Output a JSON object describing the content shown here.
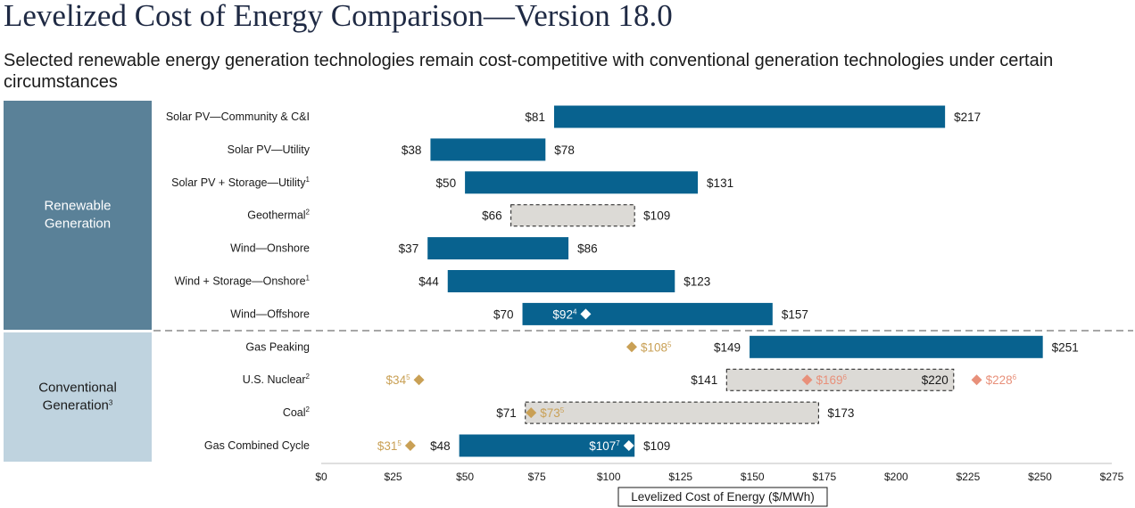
{
  "title": "Levelized Cost of Energy Comparison—Version 18.0",
  "subtitle": "Selected renewable energy generation technologies remain cost-competitive with conventional generation technologies under certain circumstances",
  "colors": {
    "bar": "#08628f",
    "dashed_fill": "#dcdad6",
    "gold": "#c9a055",
    "salmon": "#e8907a",
    "renewable_panel": "#5a8198",
    "conventional_panel": "#bfd3df"
  },
  "chart_data": {
    "type": "bar",
    "orientation": "horizontal-range",
    "xlabel": "Levelized Cost of Energy ($/MWh)",
    "xlim": [
      0,
      275
    ],
    "xticks": [
      0,
      25,
      50,
      75,
      100,
      125,
      150,
      175,
      200,
      225,
      250,
      275
    ],
    "xtick_labels": [
      "$0",
      "$25",
      "$50",
      "$75",
      "$100",
      "$125",
      "$150",
      "$175",
      "$200",
      "$225",
      "$250",
      "$275"
    ],
    "groups": [
      {
        "label_lines": [
          "Renewable",
          "Generation"
        ],
        "sup": "",
        "row_start": 0,
        "row_count": 7,
        "style": "dark"
      },
      {
        "label_lines": [
          "Conventional",
          "Generation"
        ],
        "sup": "3",
        "row_start": 7,
        "row_count": 4,
        "style": "light"
      }
    ],
    "rows": [
      {
        "category": "Solar PV—Community & C&I",
        "sup": "",
        "low": 81,
        "high": 217,
        "low_label": "$81",
        "high_label": "$217",
        "style": "solid",
        "markers": []
      },
      {
        "category": "Solar PV—Utility",
        "sup": "",
        "low": 38,
        "high": 78,
        "low_label": "$38",
        "high_label": "$78",
        "style": "solid",
        "markers": []
      },
      {
        "category": "Solar PV + Storage—Utility",
        "sup": "1",
        "low": 50,
        "high": 131,
        "low_label": "$50",
        "high_label": "$131",
        "style": "solid",
        "markers": []
      },
      {
        "category": "Geothermal",
        "sup": "2",
        "low": 66,
        "high": 109,
        "low_label": "$66",
        "high_label": "$109",
        "style": "dashed",
        "markers": []
      },
      {
        "category": "Wind—Onshore",
        "sup": "",
        "low": 37,
        "high": 86,
        "low_label": "$37",
        "high_label": "$86",
        "style": "solid",
        "markers": []
      },
      {
        "category": "Wind + Storage—Onshore",
        "sup": "1",
        "low": 44,
        "high": 123,
        "low_label": "$44",
        "high_label": "$123",
        "style": "solid",
        "markers": []
      },
      {
        "category": "Wind—Offshore",
        "sup": "",
        "low": 70,
        "high": 157,
        "low_label": "$70",
        "high_label": "$157",
        "style": "solid",
        "markers": [
          {
            "value": 92,
            "label": "$92",
            "sup": "4",
            "color": "white",
            "label_side": "left"
          }
        ]
      },
      {
        "category": "Gas Peaking",
        "sup": "",
        "low": 149,
        "high": 251,
        "low_label": "$149",
        "high_label": "$251",
        "style": "solid",
        "markers": [
          {
            "value": 108,
            "label": "$108",
            "sup": "5",
            "color": "gold",
            "label_side": "right"
          }
        ]
      },
      {
        "category": "U.S. Nuclear",
        "sup": "2",
        "low": 141,
        "high": 220,
        "low_label": "$141",
        "high_label": "$220",
        "style": "dashed",
        "high_label_inside": true,
        "markers": [
          {
            "value": 34,
            "label": "$34",
            "sup": "5",
            "color": "gold",
            "label_side": "left"
          },
          {
            "value": 169,
            "label": "$169",
            "sup": "6",
            "color": "salmon",
            "label_side": "right"
          },
          {
            "value": 228,
            "label": "$228",
            "sup": "6",
            "color": "salmon",
            "label_side": "right"
          }
        ]
      },
      {
        "category": "Coal",
        "sup": "2",
        "low": 71,
        "high": 173,
        "low_label": "$71",
        "high_label": "$173",
        "style": "dashed",
        "markers": [
          {
            "value": 73,
            "label": "$73",
            "sup": "5",
            "color": "gold",
            "label_side": "right"
          }
        ]
      },
      {
        "category": "Gas Combined Cycle",
        "sup": "",
        "low": 48,
        "high": 109,
        "low_label": "$48",
        "high_label": "$109",
        "style": "solid",
        "markers": [
          {
            "value": 31,
            "label": "$31",
            "sup": "5",
            "color": "gold",
            "label_side": "left"
          },
          {
            "value": 107,
            "label": "$107",
            "sup": "7",
            "color": "white",
            "label_side": "left"
          }
        ]
      }
    ]
  }
}
